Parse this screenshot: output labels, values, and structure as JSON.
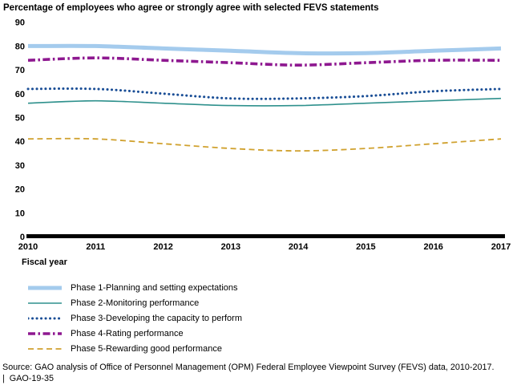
{
  "chart_data": {
    "type": "line",
    "title": "Percentage of employees who agree or strongly agree with selected FEVS statements",
    "xlabel": "Fiscal year",
    "ylabel": "",
    "x": [
      2010,
      2011,
      2012,
      2013,
      2014,
      2015,
      2016,
      2017
    ],
    "ylim": [
      0,
      90
    ],
    "yticks": [
      0,
      10,
      20,
      30,
      40,
      50,
      60,
      70,
      80,
      90
    ],
    "grid": false,
    "legend_position": "bottom-left",
    "series": [
      {
        "name": "Phase 1-Planning and setting expectations",
        "color": "#A4CBED",
        "style": "solid-thick",
        "values": [
          80,
          80,
          79,
          78,
          77,
          77,
          78,
          79
        ]
      },
      {
        "name": "Phase 2-Monitoring performance",
        "color": "#2F918D",
        "style": "solid",
        "values": [
          56,
          57,
          56,
          55,
          55,
          56,
          57,
          58
        ]
      },
      {
        "name": "Phase 3-Developing the capacity to perform",
        "color": "#1A4E96",
        "style": "dotted",
        "values": [
          62,
          62,
          60,
          58,
          58,
          59,
          61,
          62
        ]
      },
      {
        "name": "Phase 4-Rating performance",
        "color": "#8E1890",
        "style": "dashdot",
        "values": [
          74,
          75,
          74,
          73,
          72,
          73,
          74,
          74
        ]
      },
      {
        "name": "Phase 5-Rewarding good performance",
        "color": "#D0A12E",
        "style": "dashed",
        "values": [
          41,
          41,
          39,
          37,
          36,
          37,
          39,
          41
        ]
      }
    ]
  },
  "source": {
    "line1": "Source: GAO analysis of Office of Personnel Management (OPM) Federal Employee Viewpoint Survey (FEVS) data, 2010-2017.",
    "line2": "|  GAO-19-35"
  }
}
